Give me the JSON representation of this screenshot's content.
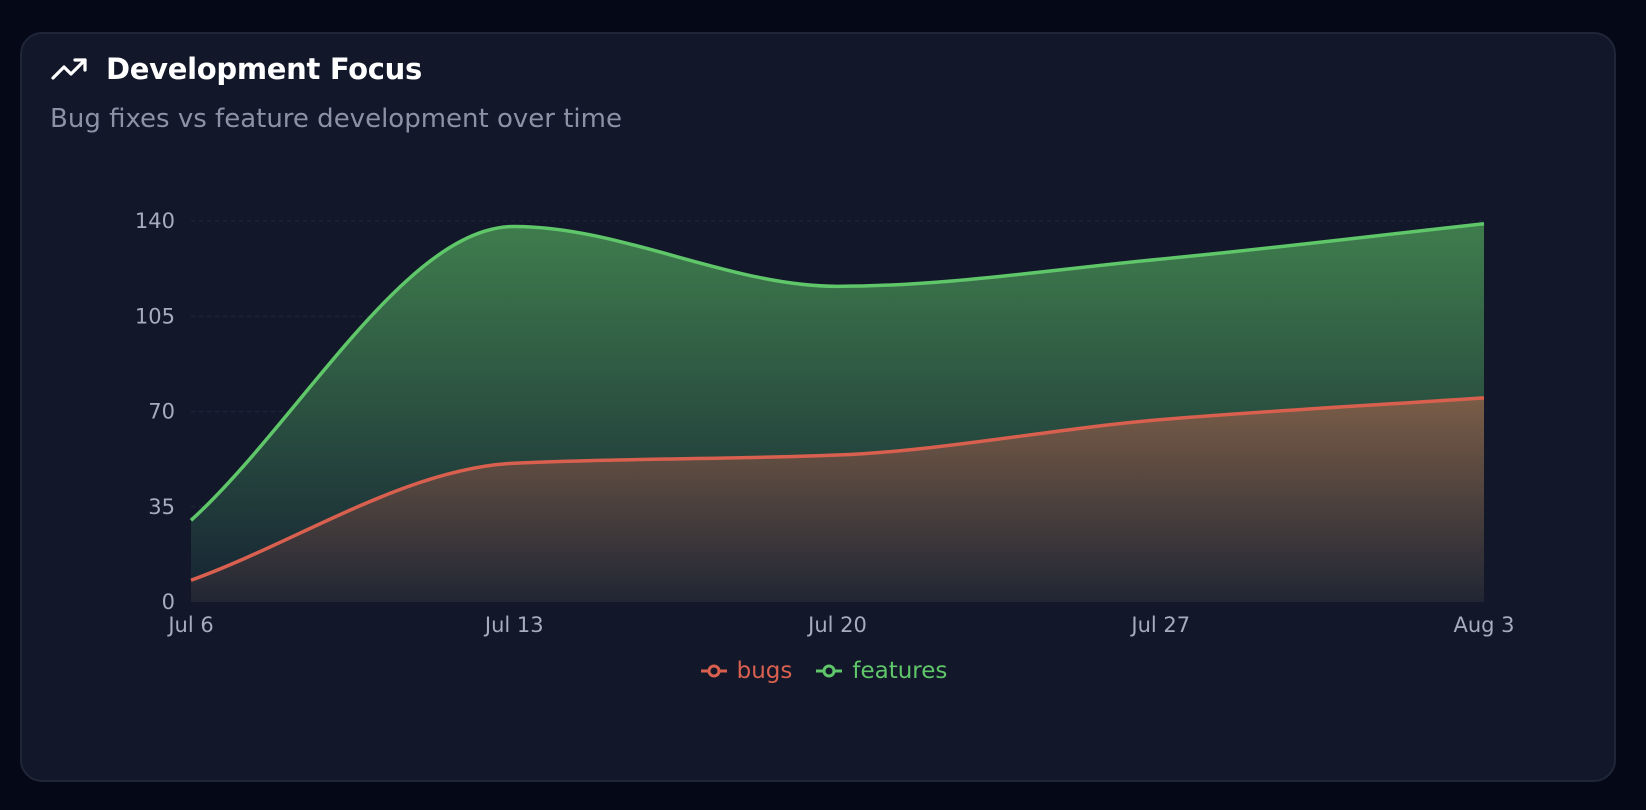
{
  "card": {
    "title": "Development Focus",
    "subtitle": "Bug fixes vs feature development over time"
  },
  "icons": {
    "title_icon": "trending-up-icon"
  },
  "colors": {
    "background": "#050816",
    "card": "#121829",
    "bugs": "#d9604f",
    "features": "#5fc66a",
    "grid": "#273044"
  },
  "chart_data": {
    "type": "area",
    "stacked": true,
    "title": "Development Focus",
    "subtitle": "Bug fixes vs feature development over time",
    "x": [
      "Jul 6",
      "Jul 13",
      "Jul 20",
      "Jul 27",
      "Aug 3"
    ],
    "x_tick_labels": [
      "Jul 6",
      "Jul 13",
      "Jul 20",
      "Jul 27",
      "Aug 3"
    ],
    "y_ticks": [
      0,
      35,
      70,
      105,
      140
    ],
    "ylim": [
      0,
      140
    ],
    "grid": true,
    "legend_position": "bottom",
    "series": [
      {
        "name": "bugs",
        "color": "#d9604f",
        "values": [
          8,
          51,
          54,
          67,
          75
        ]
      },
      {
        "name": "features",
        "color": "#5fc66a",
        "values": [
          22,
          87,
          62,
          59,
          64
        ]
      }
    ]
  }
}
